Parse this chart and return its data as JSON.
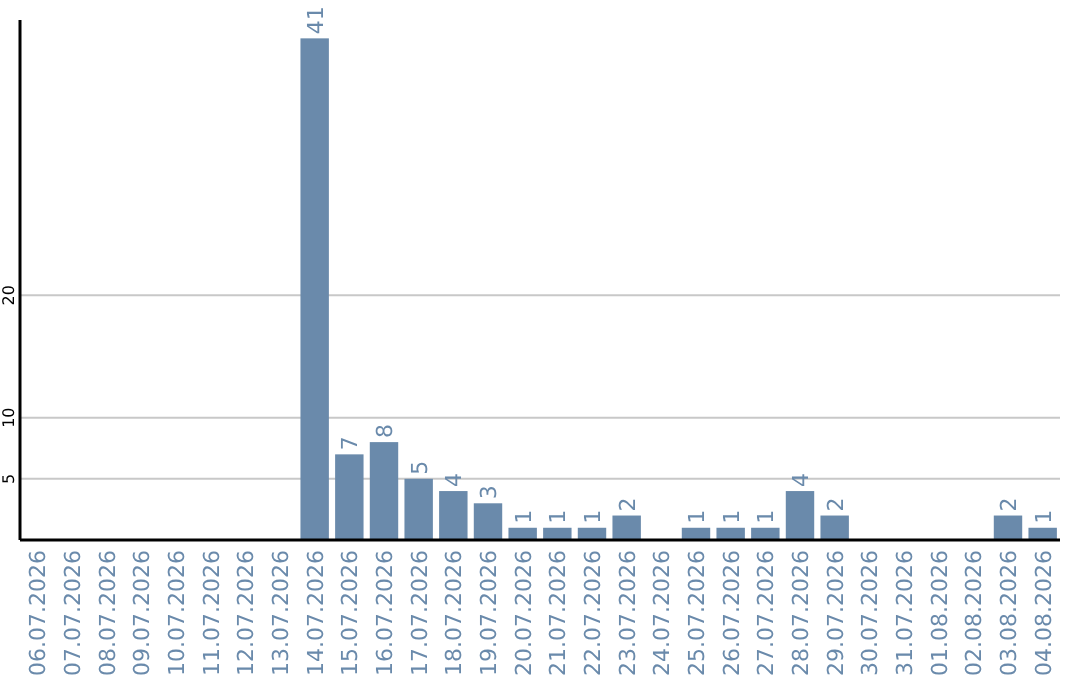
{
  "chart_data": {
    "type": "bar",
    "categories": [
      "06.07.2026",
      "07.07.2026",
      "08.07.2026",
      "09.07.2026",
      "10.07.2026",
      "11.07.2026",
      "12.07.2026",
      "13.07.2026",
      "14.07.2026",
      "15.07.2026",
      "16.07.2026",
      "17.07.2026",
      "18.07.2026",
      "19.07.2026",
      "20.07.2026",
      "21.07.2026",
      "22.07.2026",
      "23.07.2026",
      "24.07.2026",
      "25.07.2026",
      "26.07.2026",
      "27.07.2026",
      "28.07.2026",
      "29.07.2026",
      "30.07.2026",
      "31.07.2026",
      "01.08.2026",
      "02.08.2026",
      "03.08.2026",
      "04.08.2026"
    ],
    "values": [
      null,
      null,
      null,
      null,
      null,
      null,
      null,
      null,
      41,
      7,
      8,
      5,
      4,
      3,
      1,
      1,
      1,
      2,
      null,
      1,
      1,
      1,
      4,
      2,
      null,
      null,
      null,
      null,
      2,
      1
    ],
    "color": "#6a8aab",
    "ylim": [
      0,
      42.5
    ],
    "yticks": [
      5,
      10,
      20
    ],
    "grid": "y",
    "data_labels": true
  }
}
